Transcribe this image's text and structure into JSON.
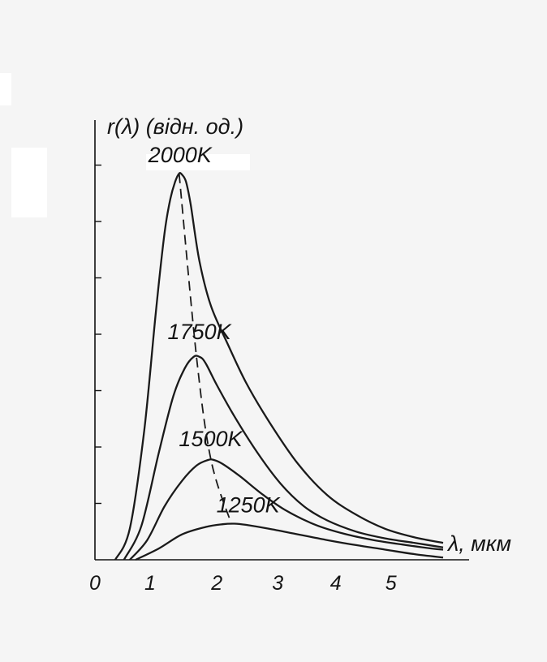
{
  "chart_data": {
    "type": "line",
    "xlabel": "λ, мкм",
    "ylabel": "r(λ) (відн. од.)",
    "x_ticks": [
      "0",
      "1",
      "2",
      "3",
      "4",
      "5"
    ],
    "xlim": [
      0,
      6.2
    ],
    "ylim": [
      0,
      7.2
    ],
    "y_tick_count": 7,
    "grid": false,
    "legend": "none",
    "wien_line_dashed": true,
    "series": [
      {
        "name": "2000K",
        "x": [
          0.35,
          0.6,
          0.85,
          1.05,
          1.2,
          1.3,
          1.38,
          1.45,
          1.5,
          1.57,
          1.65,
          1.8,
          2.0,
          2.3,
          2.6,
          3.0,
          3.5,
          4.0,
          4.5,
          5.0,
          5.5,
          6.0
        ],
        "y": [
          0,
          0.55,
          2.3,
          4.4,
          5.8,
          6.4,
          6.7,
          6.85,
          6.83,
          6.7,
          6.3,
          5.3,
          4.5,
          3.8,
          3.15,
          2.45,
          1.7,
          1.15,
          0.8,
          0.55,
          0.4,
          0.3
        ]
      },
      {
        "name": "1750K",
        "x": [
          0.5,
          0.8,
          1.1,
          1.35,
          1.55,
          1.7,
          1.8,
          1.9,
          2.1,
          2.4,
          2.8,
          3.2,
          3.6,
          4.0,
          4.5,
          5.0,
          5.5,
          6.0
        ],
        "y": [
          0,
          0.6,
          1.9,
          2.9,
          3.4,
          3.6,
          3.6,
          3.5,
          3.1,
          2.55,
          1.9,
          1.35,
          0.95,
          0.7,
          0.5,
          0.38,
          0.3,
          0.22
        ]
      },
      {
        "name": "1500K",
        "x": [
          0.6,
          0.9,
          1.2,
          1.5,
          1.75,
          1.95,
          2.05,
          2.2,
          2.5,
          2.9,
          3.3,
          3.8,
          4.3,
          4.8,
          5.3,
          5.8,
          6.0
        ],
        "y": [
          0,
          0.35,
          0.95,
          1.4,
          1.67,
          1.77,
          1.77,
          1.7,
          1.48,
          1.15,
          0.87,
          0.62,
          0.46,
          0.35,
          0.27,
          0.2,
          0.18
        ]
      },
      {
        "name": "1250K",
        "x": [
          0.7,
          1.1,
          1.5,
          1.9,
          2.2,
          2.4,
          2.6,
          3.0,
          3.5,
          4.0,
          4.5,
          5.0,
          5.5,
          6.0
        ],
        "y": [
          0,
          0.2,
          0.45,
          0.58,
          0.63,
          0.64,
          0.62,
          0.55,
          0.45,
          0.35,
          0.26,
          0.18,
          0.1,
          0.04
        ]
      }
    ],
    "wien_peaks": {
      "x": [
        1.45,
        1.75,
        2.0,
        2.35
      ],
      "y": [
        6.85,
        3.6,
        1.77,
        0.64
      ]
    }
  }
}
